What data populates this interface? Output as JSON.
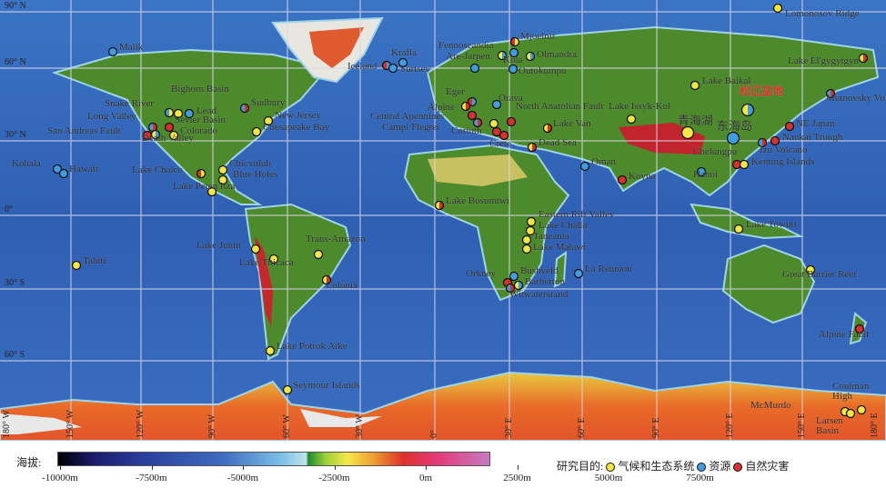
{
  "map": {
    "latitude_labels": [
      "90° N",
      "60° N",
      "30° N",
      "0°",
      "30° S",
      "60° S"
    ],
    "longitude_labels": [
      "180° W",
      "150° W",
      "120° W",
      "90° W",
      "60° W",
      "30° W",
      "0°",
      "30° E",
      "60° E",
      "90° E",
      "120° E",
      "150° E",
      "180° E"
    ],
    "sites": [
      {
        "name": "Lomonosov Ridge",
        "purpose": [
          "climate"
        ]
      },
      {
        "name": "Mjoelnir",
        "purpose": [
          "hazard",
          "climate"
        ]
      },
      {
        "name": "Fennoscandia",
        "purpose": []
      },
      {
        "name": "Are-Jarpen",
        "purpose": [
          "resource"
        ]
      },
      {
        "name": "",
        "purpose": [
          "climate",
          "resource"
        ]
      },
      {
        "name": "Kola",
        "purpose": [
          "resource"
        ]
      },
      {
        "name": "Olmandra",
        "purpose": [
          "climate",
          "resource"
        ]
      },
      {
        "name": "Outokumpu",
        "purpose": [
          "resource"
        ]
      },
      {
        "name": "Krafla",
        "purpose": [
          "resource"
        ]
      },
      {
        "name": "Iceland",
        "purpose": [
          "hazard",
          "resource"
        ]
      },
      {
        "name": "Surtsey",
        "purpose": [
          "resource"
        ]
      },
      {
        "name": "Malik",
        "purpose": [
          "resource"
        ]
      },
      {
        "name": "Lake El'gygytgyn",
        "purpose": [
          "climate",
          "hazard"
        ]
      },
      {
        "name": "Lake Baikal",
        "purpose": [
          "climate"
        ]
      },
      {
        "name": "松辽盆地",
        "purpose": [
          "climate",
          "resource"
        ]
      },
      {
        "name": "Mutnovsky Volcano",
        "purpose": [
          "resource",
          "hazard"
        ]
      },
      {
        "name": "NE Japan",
        "purpose": [
          "hazard"
        ]
      },
      {
        "name": "Nankai Trough",
        "purpose": [
          "hazard"
        ]
      },
      {
        "name": "Izu Volcano",
        "purpose": [
          "resource",
          "hazard"
        ]
      },
      {
        "name": "东海岛",
        "purpose": [
          "resource"
        ]
      },
      {
        "name": "青海湖",
        "purpose": [
          "climate"
        ]
      },
      {
        "name": "Lake Issyk-Kul",
        "purpose": [
          "climate"
        ]
      },
      {
        "name": "Chelungpu",
        "purpose": [
          "hazard"
        ]
      },
      {
        "name": "Kenting Islands",
        "purpose": [
          "climate"
        ]
      },
      {
        "name": "Hanoi",
        "purpose": [
          "resource"
        ]
      },
      {
        "name": "Koyna",
        "purpose": [
          "hazard"
        ]
      },
      {
        "name": "Oman",
        "purpose": [
          "resource"
        ]
      },
      {
        "name": "Lake Towuti",
        "purpose": [
          "climate"
        ]
      },
      {
        "name": "Great Barrier Reef",
        "purpose": [
          "climate"
        ]
      },
      {
        "name": "Alpine Fault",
        "purpose": [
          "hazard"
        ]
      },
      {
        "name": "McMurdo",
        "purpose": [
          "climate"
        ]
      },
      {
        "name": "Coulman High",
        "purpose": [
          "climate"
        ]
      },
      {
        "name": "Larsen Basin",
        "purpose": [
          "climate"
        ]
      },
      {
        "name": "Eger",
        "purpose": [
          "hazard",
          "resource"
        ]
      },
      {
        "name": "Alpine",
        "purpose": [
          "climate",
          "hazard"
        ]
      },
      {
        "name": "Orava",
        "purpose": [
          "resource"
        ]
      },
      {
        "name": "Central Apennines",
        "purpose": [
          "hazard"
        ]
      },
      {
        "name": "Campi Flegrei",
        "purpose": [
          "resource",
          "hazard"
        ]
      },
      {
        "name": "",
        "purpose": [
          "climate"
        ]
      },
      {
        "name": "Corinth",
        "purpose": [
          "hazard"
        ]
      },
      {
        "name": "Crete",
        "purpose": [
          "hazard"
        ]
      },
      {
        "name": "North Anatolian Fault",
        "purpose": [
          "hazard"
        ]
      },
      {
        "name": "Lake Van",
        "purpose": [
          "climate",
          "hazard"
        ]
      },
      {
        "name": "Dead Sea",
        "purpose": [
          "climate",
          "hazard"
        ]
      },
      {
        "name": "Snake River",
        "purpose": [
          "resource",
          "climate"
        ]
      },
      {
        "name": "Bighorn Basin",
        "purpose": [
          "climate"
        ]
      },
      {
        "name": "Lead",
        "purpose": [
          "resource"
        ]
      },
      {
        "name": "Long Valley",
        "purpose": [
          "resource",
          "hazard"
        ]
      },
      {
        "name": "San Andreas Fault",
        "purpose": [
          "hazard"
        ]
      },
      {
        "name": "Death Valley",
        "purpose": [
          "climate",
          "resource"
        ]
      },
      {
        "name": "Sevier Basin",
        "purpose": [
          "hazard"
        ]
      },
      {
        "name": "Colorado",
        "purpose": [
          "climate"
        ]
      },
      {
        "name": "Sudbury",
        "purpose": [
          "resource",
          "hazard"
        ]
      },
      {
        "name": "New Jersey",
        "purpose": [
          "climate"
        ]
      },
      {
        "name": "Chesapeake Bay",
        "purpose": [
          "climate"
        ]
      },
      {
        "name": "Kohala",
        "purpose": [
          "resource"
        ]
      },
      {
        "name": "Hawaii",
        "purpose": [
          "resource"
        ]
      },
      {
        "name": "Lake Chalco",
        "purpose": [
          "hazard",
          "climate"
        ]
      },
      {
        "name": "Chicxulub",
        "purpose": [
          "climate"
        ]
      },
      {
        "name": "Blue Holes",
        "purpose": [
          "climate"
        ]
      },
      {
        "name": "Lake Peten Itza",
        "purpose": [
          "climate"
        ]
      },
      {
        "name": "Tahiti",
        "purpose": [
          "climate"
        ]
      },
      {
        "name": "Lake Junin",
        "purpose": [
          "climate"
        ]
      },
      {
        "name": "Lake Titicaca",
        "purpose": [
          "climate"
        ]
      },
      {
        "name": "Trans-Amazon",
        "purpose": [
          "climate"
        ]
      },
      {
        "name": "Colonia",
        "purpose": [
          "climate",
          "hazard"
        ]
      },
      {
        "name": "Lake Potrok Aike",
        "purpose": [
          "climate"
        ]
      },
      {
        "name": "Seymour Islands",
        "purpose": [
          "climate"
        ]
      },
      {
        "name": "Lake Bosumtwi",
        "purpose": [
          "climate",
          "hazard"
        ]
      },
      {
        "name": "Eastern Rift Valley",
        "purpose": [
          "climate"
        ]
      },
      {
        "name": "Lake Challa",
        "purpose": [
          "climate"
        ]
      },
      {
        "name": "Tanzania",
        "purpose": [
          "climate"
        ]
      },
      {
        "name": "Lake Malawi",
        "purpose": [
          "climate"
        ]
      },
      {
        "name": "Bushveld",
        "purpose": [
          "resource"
        ]
      },
      {
        "name": "Orkney",
        "purpose": [
          "hazard"
        ]
      },
      {
        "name": "Barberton",
        "purpose": [
          "climate",
          "resource"
        ]
      },
      {
        "name": "Witwatersrand",
        "purpose": [
          "resource",
          "hazard"
        ]
      },
      {
        "name": "La Réunion",
        "purpose": [
          "resource"
        ]
      }
    ]
  },
  "elevation_legend": {
    "title": "海拔:",
    "ticks": [
      "-10000m",
      "-7500m",
      "-5000m",
      "-2500m",
      "0m",
      "2500m",
      "5000m",
      "7500m"
    ]
  },
  "purpose_legend": {
    "title": "研究目的:",
    "items": [
      {
        "key": "climate",
        "label": "气候和生态系统",
        "color": "#f5e642"
      },
      {
        "key": "resource",
        "label": "资源",
        "color": "#3f9de0"
      },
      {
        "key": "hazard",
        "label": "自然灾害",
        "color": "#d8302a"
      }
    ]
  }
}
